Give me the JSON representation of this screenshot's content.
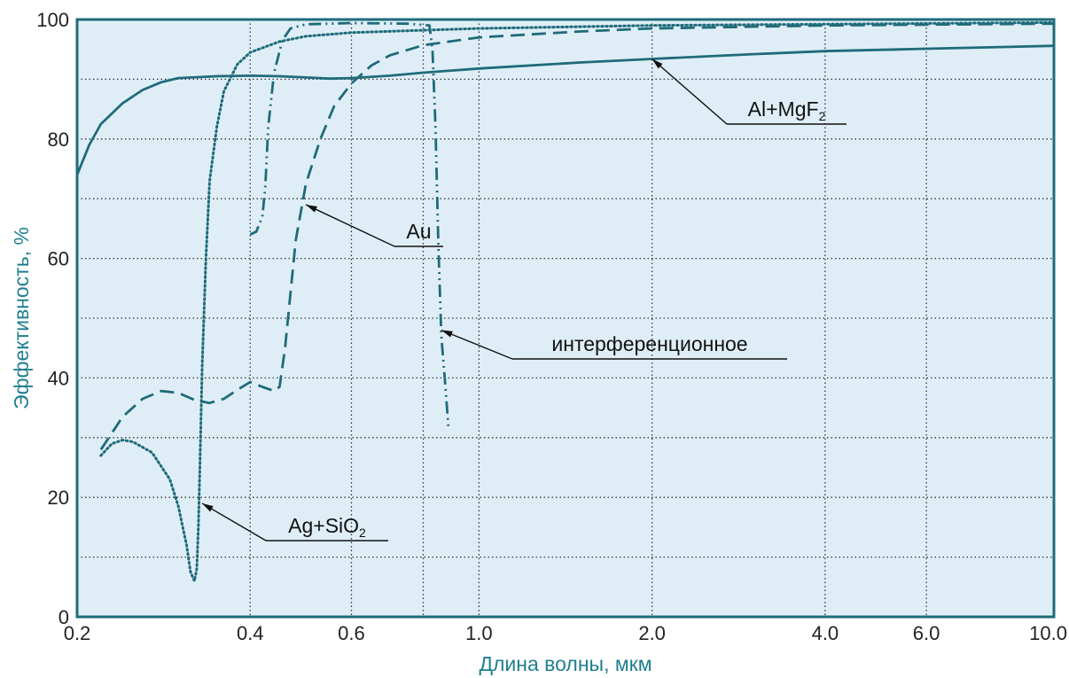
{
  "chart_data": {
    "type": "line",
    "xlabel": "Длина волны, мкм",
    "ylabel": "Эффективность, %",
    "x_scale": "log",
    "xlim": [
      0.2,
      10.0
    ],
    "ylim": [
      0,
      100
    ],
    "grid": true,
    "x_ticks": [
      {
        "value": 0.2,
        "label": "0.2"
      },
      {
        "value": 0.4,
        "label": "0.4"
      },
      {
        "value": 0.6,
        "label": "0.6"
      },
      {
        "value": 1.0,
        "label": "1.0"
      },
      {
        "value": 2.0,
        "label": "2.0"
      },
      {
        "value": 4.0,
        "label": "4.0"
      },
      {
        "value": 6.0,
        "label": "6.0"
      },
      {
        "value": 10.0,
        "label": "10.0"
      }
    ],
    "x_minor_gridlines": [
      0.8
    ],
    "y_ticks": [
      0,
      20,
      40,
      60,
      80,
      100
    ],
    "y_minor_gridlines": [
      10,
      30,
      50,
      70,
      90
    ],
    "colors": {
      "line": "#1f6b7a",
      "frame": "#1f6b7a",
      "plot_bg": "#dfeef6",
      "grid": "#333333",
      "axis_title": "#1f7f8f"
    },
    "series": [
      {
        "name": "Al+MgF",
        "name_sub": "2",
        "style": "solid",
        "points": [
          [
            0.2,
            74
          ],
          [
            0.21,
            79
          ],
          [
            0.22,
            82.5
          ],
          [
            0.24,
            86
          ],
          [
            0.26,
            88.2
          ],
          [
            0.28,
            89.5
          ],
          [
            0.3,
            90.2
          ],
          [
            0.35,
            90.5
          ],
          [
            0.4,
            90.6
          ],
          [
            0.45,
            90.5
          ],
          [
            0.5,
            90.3
          ],
          [
            0.55,
            90.1
          ],
          [
            0.6,
            90.2
          ],
          [
            0.7,
            90.6
          ],
          [
            0.8,
            91.1
          ],
          [
            1.0,
            91.8
          ],
          [
            1.5,
            92.8
          ],
          [
            2.0,
            93.4
          ],
          [
            3.0,
            94.2
          ],
          [
            4.0,
            94.7
          ],
          [
            6.0,
            95.1
          ],
          [
            10.0,
            95.6
          ]
        ]
      },
      {
        "name": "Au",
        "style": "dashed",
        "points": [
          [
            0.22,
            28
          ],
          [
            0.24,
            33.5
          ],
          [
            0.26,
            36.5
          ],
          [
            0.28,
            37.8
          ],
          [
            0.3,
            37.5
          ],
          [
            0.32,
            36.3
          ],
          [
            0.34,
            35.8
          ],
          [
            0.36,
            36.5
          ],
          [
            0.38,
            38
          ],
          [
            0.4,
            39.3
          ],
          [
            0.42,
            38.5
          ],
          [
            0.44,
            37.8
          ],
          [
            0.45,
            38.5
          ],
          [
            0.46,
            45
          ],
          [
            0.48,
            63
          ],
          [
            0.5,
            72.5
          ],
          [
            0.53,
            80
          ],
          [
            0.56,
            85.5
          ],
          [
            0.6,
            89.3
          ],
          [
            0.65,
            92.3
          ],
          [
            0.7,
            94
          ],
          [
            0.8,
            95.7
          ],
          [
            1.0,
            97
          ],
          [
            1.5,
            98
          ],
          [
            2.0,
            98.5
          ],
          [
            4.0,
            99
          ],
          [
            10.0,
            99.3
          ]
        ]
      },
      {
        "name": "интерференционное",
        "style": "dashdotdot",
        "points": [
          [
            0.4,
            64
          ],
          [
            0.41,
            64.5
          ],
          [
            0.42,
            67
          ],
          [
            0.425,
            72
          ],
          [
            0.43,
            82
          ],
          [
            0.44,
            91
          ],
          [
            0.455,
            96.5
          ],
          [
            0.47,
            98.5
          ],
          [
            0.5,
            99.2
          ],
          [
            0.6,
            99.4
          ],
          [
            0.75,
            99.3
          ],
          [
            0.82,
            99
          ],
          [
            0.83,
            95
          ],
          [
            0.84,
            82
          ],
          [
            0.85,
            62
          ],
          [
            0.86,
            47
          ],
          [
            0.875,
            38
          ],
          [
            0.885,
            31.5
          ]
        ]
      },
      {
        "name": "Ag+SiO",
        "name_sub": "2",
        "style": "dotted",
        "points": [
          [
            0.22,
            27
          ],
          [
            0.23,
            29
          ],
          [
            0.24,
            29.6
          ],
          [
            0.25,
            29.3
          ],
          [
            0.27,
            27.5
          ],
          [
            0.29,
            23
          ],
          [
            0.3,
            18.5
          ],
          [
            0.31,
            12
          ],
          [
            0.315,
            7.5
          ],
          [
            0.32,
            6
          ],
          [
            0.323,
            8
          ],
          [
            0.325,
            15
          ],
          [
            0.327,
            25
          ],
          [
            0.33,
            42
          ],
          [
            0.335,
            60
          ],
          [
            0.34,
            73
          ],
          [
            0.35,
            82
          ],
          [
            0.36,
            88
          ],
          [
            0.38,
            92.5
          ],
          [
            0.4,
            94.5
          ],
          [
            0.45,
            96.3
          ],
          [
            0.5,
            97.2
          ],
          [
            0.6,
            97.8
          ],
          [
            0.8,
            98.2
          ],
          [
            1.0,
            98.5
          ],
          [
            2.0,
            99
          ],
          [
            10.0,
            99.5
          ]
        ]
      }
    ],
    "annotations": [
      {
        "label": "Al+MgF",
        "sub": "2",
        "point": [
          2.0,
          93.4
        ]
      },
      {
        "label": "Au",
        "point": [
          0.5,
          69
        ]
      },
      {
        "label": "интерференционное",
        "point": [
          0.86,
          48
        ]
      },
      {
        "label": "Ag+SiO",
        "sub": "2",
        "point": [
          0.33,
          19
        ]
      }
    ]
  }
}
